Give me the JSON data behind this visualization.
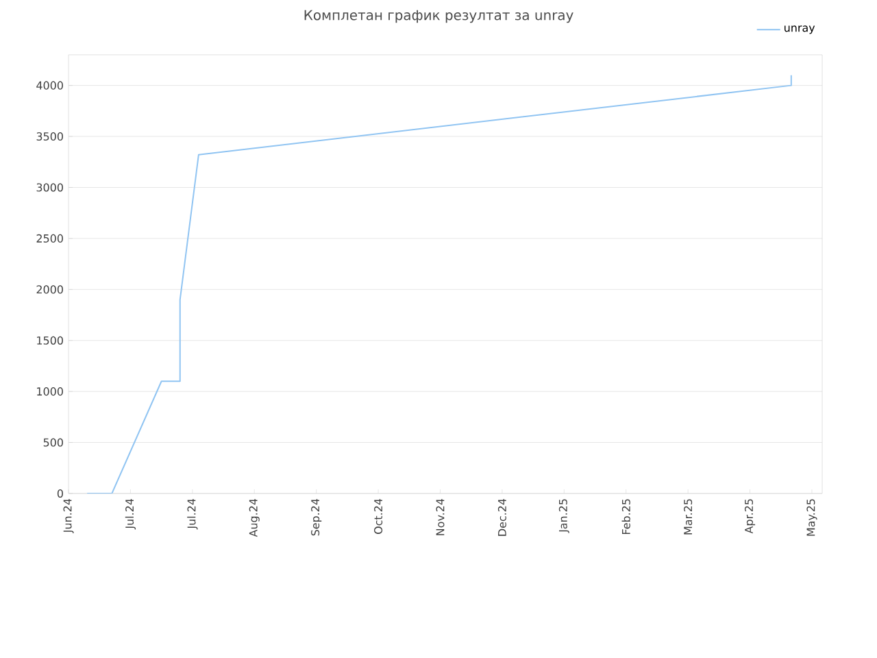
{
  "chart_data": {
    "type": "line",
    "title": "Комплетан график резултат за unray",
    "x": [
      "2024-06-10",
      "2024-06-22",
      "2024-07-16",
      "2024-07-25",
      "2024-07-25",
      "2024-08-03",
      "2025-05-17",
      "2025-05-17"
    ],
    "series": [
      {
        "name": "unray",
        "color": "#90c4f2",
        "values": [
          0,
          0,
          1100,
          1100,
          1900,
          3320,
          4000,
          4100
        ]
      }
    ],
    "xlim": [
      "2024-06-01",
      "2025-06-01"
    ],
    "xticks": [
      {
        "value": "2024-06-01",
        "label": "Jun.24"
      },
      {
        "value": "2024-07-01",
        "label": "Jul.24"
      },
      {
        "value": "2024-07-31",
        "label": "Jul.24"
      },
      {
        "value": "2024-08-30",
        "label": "Aug.24"
      },
      {
        "value": "2024-09-29",
        "label": "Sep.24"
      },
      {
        "value": "2024-10-29",
        "label": "Oct.24"
      },
      {
        "value": "2024-11-28",
        "label": "Nov.24"
      },
      {
        "value": "2024-12-28",
        "label": "Dec.24"
      },
      {
        "value": "2025-01-27",
        "label": "Jan.25"
      },
      {
        "value": "2025-02-26",
        "label": "Feb.25"
      },
      {
        "value": "2025-03-28",
        "label": "Mar.25"
      },
      {
        "value": "2025-04-27",
        "label": "Apr.25"
      },
      {
        "value": "2025-05-27",
        "label": "May.25"
      }
    ],
    "ylim": [
      0,
      4300
    ],
    "yticks": [
      0,
      500,
      1000,
      1500,
      2000,
      2500,
      3000,
      3500,
      4000
    ],
    "grid": "y",
    "legend": "top right",
    "marker": "none",
    "line_style": "solid"
  }
}
